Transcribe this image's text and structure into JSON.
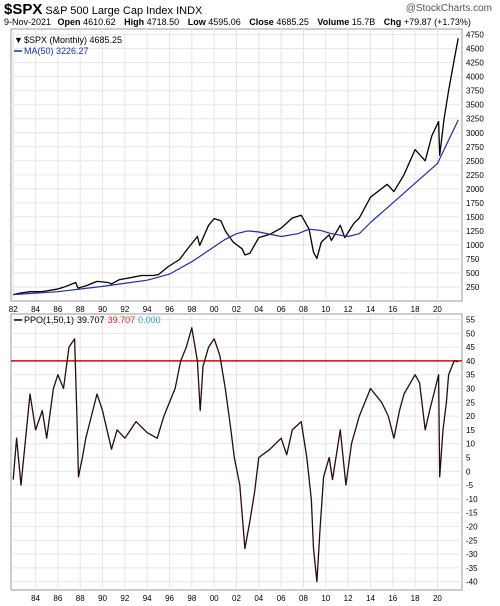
{
  "header": {
    "symbol": "$SPX",
    "name": "S&P 500 Large Cap Index",
    "exchange": "INDX",
    "brand": "@StockCharts.com",
    "date": "9-Nov-2021",
    "open_label": "Open",
    "open": "4610.62",
    "high_label": "High",
    "high": "4718.50",
    "low_label": "Low",
    "low": "4595.06",
    "close_label": "Close",
    "close": "4685.25",
    "volume_label": "Volume",
    "volume": "15.7B",
    "chg_label": "Chg",
    "chg": "+79.87 (+1.73%)"
  },
  "chart_data": [
    {
      "type": "line",
      "legend_placement": "top-left",
      "legend": {
        "price": "$SPX (Monthly) 4685.25",
        "ma": "MA(50) 3226.27"
      },
      "colors": {
        "price": "#000000",
        "ma": "#1f2fa0"
      },
      "y_ticks": [
        250,
        500,
        750,
        1000,
        1250,
        1500,
        1750,
        2000,
        2250,
        2500,
        2750,
        3000,
        3250,
        3500,
        3750,
        4000,
        4250,
        4500,
        4750
      ],
      "ylim": [
        0,
        4850
      ],
      "x_tick_labels": [
        "82",
        "84",
        "86",
        "88",
        "90",
        "92",
        "94",
        "96",
        "98",
        "00",
        "02",
        "04",
        "06",
        "08",
        "10",
        "12",
        "14",
        "16",
        "18",
        "20"
      ],
      "xlim": [
        1981.8,
        2022.2
      ],
      "grid": true,
      "series": [
        {
          "key": "price",
          "x": [
            1982.0,
            1982.6,
            1983.5,
            1984.5,
            1985.0,
            1985.9,
            1986.5,
            1987.6,
            1987.8,
            1988.5,
            1989.5,
            1990.5,
            1990.8,
            1991.5,
            1992.5,
            1993.5,
            1994.5,
            1995.0,
            1995.9,
            1996.9,
            1997.5,
            1998.5,
            1998.7,
            1999.5,
            2000.0,
            2000.6,
            2001.0,
            2001.7,
            2002.5,
            2002.75,
            2003.2,
            2004.0,
            2005.0,
            2006.0,
            2007.0,
            2007.8,
            2008.5,
            2008.9,
            2009.2,
            2009.6,
            2010.3,
            2010.5,
            2011.3,
            2011.7,
            2012.5,
            2013.0,
            2014.0,
            2015.5,
            2016.1,
            2017.0,
            2018.0,
            2018.9,
            2019.5,
            2020.1,
            2020.2,
            2020.6,
            2021.0,
            2021.5,
            2021.86
          ],
          "values": [
            115,
            140,
            165,
            165,
            180,
            210,
            245,
            330,
            230,
            270,
            350,
            330,
            305,
            380,
            415,
            455,
            455,
            470,
            615,
            740,
            900,
            1150,
            990,
            1350,
            1470,
            1430,
            1250,
            1050,
            930,
            820,
            850,
            1130,
            1190,
            1300,
            1480,
            1530,
            1280,
            870,
            760,
            1050,
            1180,
            1080,
            1350,
            1130,
            1380,
            1480,
            1850,
            2080,
            1950,
            2250,
            2700,
            2500,
            2950,
            3200,
            2600,
            3250,
            3750,
            4300,
            4685
          ]
        },
        {
          "key": "ma",
          "x": [
            1982.0,
            1986.0,
            1990.0,
            1994.0,
            1996.0,
            1998.0,
            1999.5,
            2001.0,
            2002.0,
            2003.0,
            2004.0,
            2006.0,
            2007.5,
            2008.5,
            2009.5,
            2010.5,
            2012.0,
            2013.0,
            2014.0,
            2016.0,
            2018.0,
            2020.0,
            2021.86
          ],
          "values": [
            115,
            165,
            260,
            370,
            480,
            700,
            900,
            1100,
            1200,
            1250,
            1230,
            1150,
            1200,
            1280,
            1260,
            1200,
            1150,
            1200,
            1400,
            1750,
            2100,
            2450,
            3226
          ]
        }
      ]
    },
    {
      "type": "line",
      "legend_placement": "top-left",
      "legend": {
        "label": "PPO(1,50,1)",
        "v1": "39.707",
        "v2": "39.707",
        "v3": "0.000"
      },
      "legend_colors": {
        "v1": "#000000",
        "v2": "#e02020",
        "v3": "#3aa0c0"
      },
      "colors": {
        "ppo": "#2a0c0c",
        "ref": "#e00000"
      },
      "reference_line": 40,
      "y_ticks": [
        -40,
        -35,
        -30,
        -25,
        -20,
        -15,
        -10,
        -5,
        0,
        5,
        10,
        15,
        20,
        25,
        30,
        35,
        40,
        45,
        50,
        55
      ],
      "ylim": [
        -43,
        57
      ],
      "x_tick_labels": [
        "84",
        "86",
        "88",
        "90",
        "92",
        "94",
        "96",
        "98",
        "00",
        "02",
        "04",
        "06",
        "08",
        "10",
        "12",
        "14",
        "16",
        "18",
        "20"
      ],
      "xlim": [
        1981.8,
        2022.2
      ],
      "grid": true,
      "series": [
        {
          "key": "ppo",
          "x": [
            1982.0,
            1982.3,
            1982.7,
            1983.5,
            1984.0,
            1984.6,
            1985.0,
            1985.6,
            1986.0,
            1986.5,
            1987.0,
            1987.5,
            1987.7,
            1987.85,
            1988.2,
            1988.5,
            1989.0,
            1989.5,
            1990.0,
            1990.8,
            1991.3,
            1992.0,
            1993.0,
            1994.0,
            1994.9,
            1995.5,
            1996.0,
            1996.5,
            1997.0,
            1997.5,
            1998.0,
            1998.5,
            1998.75,
            1999.0,
            1999.5,
            2000.0,
            2000.5,
            2001.0,
            2001.5,
            2001.8,
            2002.3,
            2002.75,
            2003.2,
            2003.6,
            2004.0,
            2005.0,
            2006.0,
            2006.5,
            2007.0,
            2007.8,
            2008.3,
            2008.7,
            2008.9,
            2009.2,
            2009.5,
            2009.8,
            2010.3,
            2010.6,
            2011.3,
            2011.8,
            2012.3,
            2013.0,
            2014.0,
            2015.0,
            2015.6,
            2016.1,
            2016.6,
            2017.0,
            2018.0,
            2018.4,
            2018.9,
            2019.3,
            2019.8,
            2020.1,
            2020.2,
            2020.5,
            2020.8,
            2021.0,
            2021.5,
            2021.86
          ],
          "values": [
            -3,
            12,
            -5,
            28,
            15,
            22,
            12,
            30,
            35,
            30,
            45,
            48,
            20,
            -2,
            5,
            12,
            20,
            28,
            22,
            8,
            15,
            12,
            18,
            14,
            12,
            20,
            25,
            30,
            40,
            45,
            52,
            40,
            22,
            38,
            45,
            48,
            42,
            30,
            15,
            5,
            -5,
            -28,
            -18,
            -8,
            5,
            8,
            12,
            6,
            15,
            18,
            5,
            -10,
            -28,
            -40,
            -20,
            -2,
            5,
            -3,
            15,
            -5,
            10,
            20,
            30,
            25,
            20,
            12,
            22,
            28,
            35,
            32,
            15,
            22,
            30,
            35,
            -2,
            15,
            25,
            35,
            40,
            39.707
          ]
        }
      ]
    }
  ]
}
